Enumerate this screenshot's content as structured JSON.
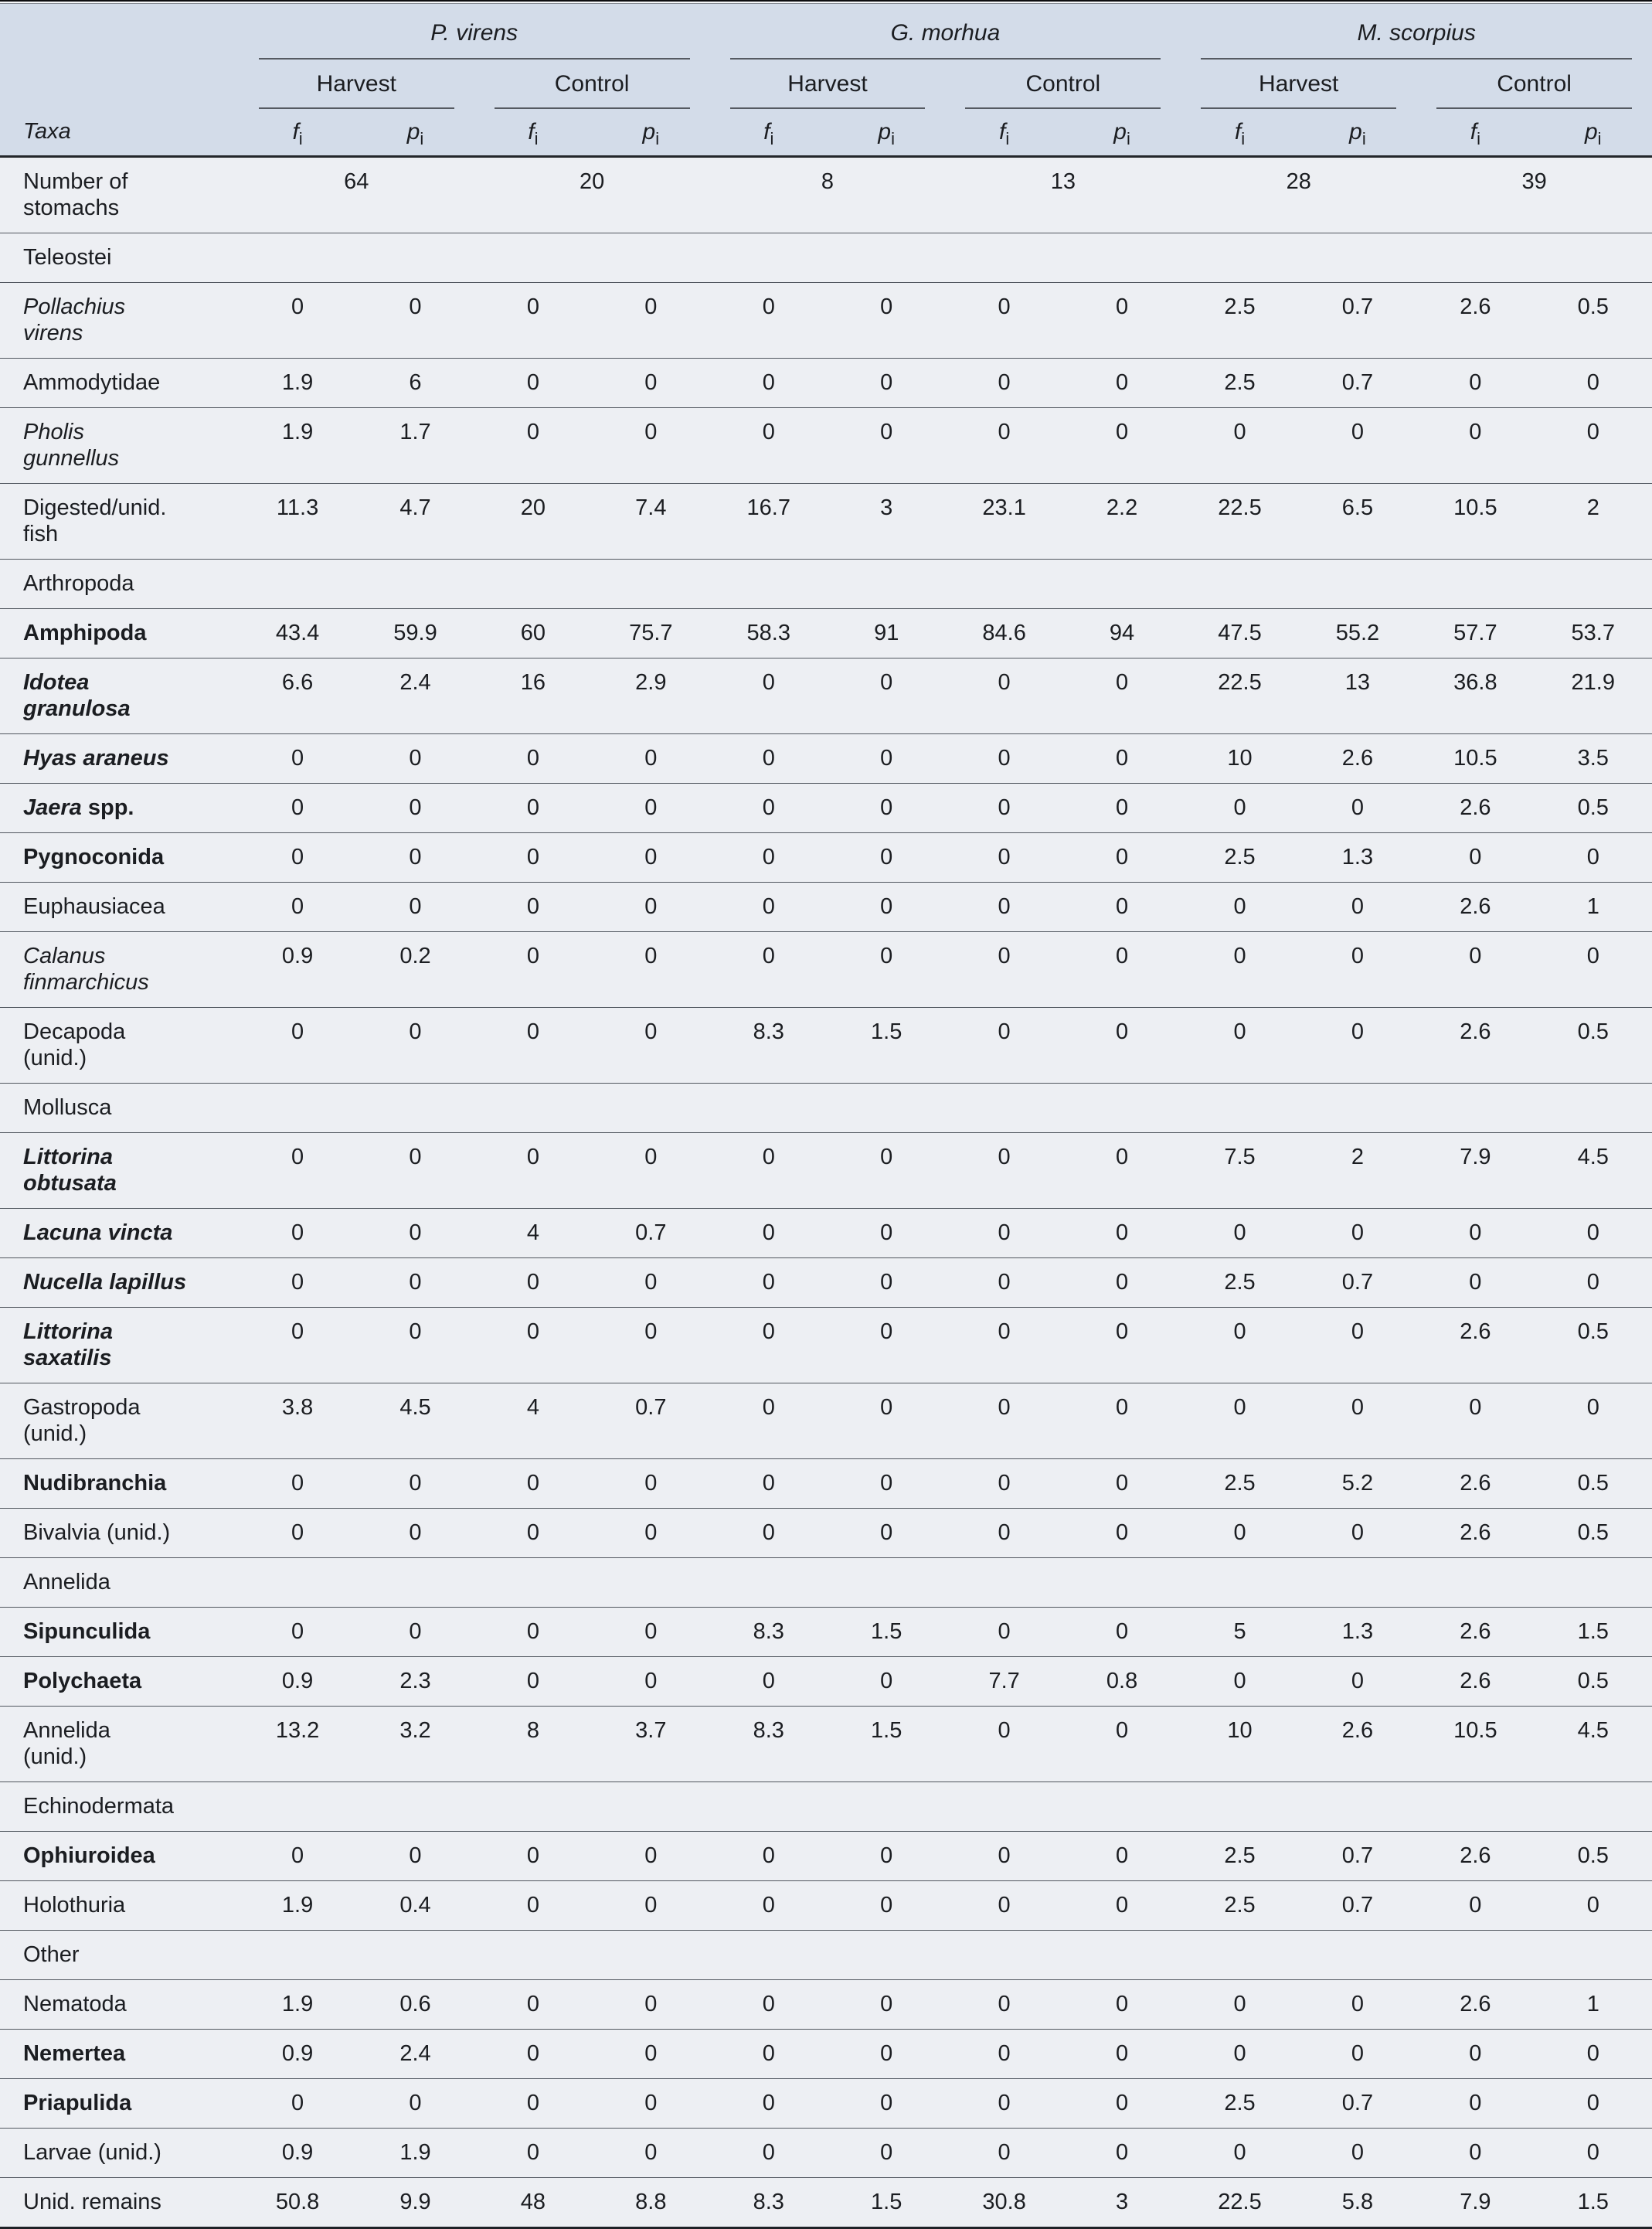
{
  "header": {
    "taxa_label": "Taxa",
    "metric_f": "f",
    "metric_p": "p",
    "metric_sub": "i",
    "species": [
      {
        "name": "P. virens"
      },
      {
        "name": "G. morhua"
      },
      {
        "name": "M. scorpius"
      }
    ],
    "treatments": [
      "Harvest",
      "Control",
      "Harvest",
      "Control",
      "Harvest",
      "Control"
    ]
  },
  "colors": {
    "header_bg": "#d3dce9",
    "body_bg": "#edeff3",
    "rule_dark": "#23262b",
    "rule_light": "#50565e"
  },
  "rows": [
    {
      "type": "stomachs",
      "label": "Number of\nstomachs",
      "counts": [
        "64",
        "20",
        "8",
        "13",
        "28",
        "39"
      ]
    },
    {
      "type": "section",
      "label": "Teleostei"
    },
    {
      "type": "taxa",
      "parts": [
        {
          "text": "Pollachius\nvirens",
          "style": "italic"
        }
      ],
      "values": [
        "0",
        "0",
        "0",
        "0",
        "0",
        "0",
        "0",
        "0",
        "2.5",
        "0.7",
        "2.6",
        "0.5"
      ]
    },
    {
      "type": "taxa",
      "parts": [
        {
          "text": "Ammodytidae",
          "style": "plain"
        }
      ],
      "values": [
        "1.9",
        "6",
        "0",
        "0",
        "0",
        "0",
        "0",
        "0",
        "2.5",
        "0.7",
        "0",
        "0"
      ]
    },
    {
      "type": "taxa",
      "parts": [
        {
          "text": "Pholis\ngunnellus",
          "style": "italic"
        }
      ],
      "values": [
        "1.9",
        "1.7",
        "0",
        "0",
        "0",
        "0",
        "0",
        "0",
        "0",
        "0",
        "0",
        "0"
      ]
    },
    {
      "type": "taxa",
      "parts": [
        {
          "text": "Digested/unid.\nfish",
          "style": "plain"
        }
      ],
      "values": [
        "11.3",
        "4.7",
        "20",
        "7.4",
        "16.7",
        "3",
        "23.1",
        "2.2",
        "22.5",
        "6.5",
        "10.5",
        "2"
      ]
    },
    {
      "type": "section",
      "label": "Arthropoda"
    },
    {
      "type": "taxa",
      "parts": [
        {
          "text": "Amphipoda",
          "style": "bold"
        }
      ],
      "values": [
        "43.4",
        "59.9",
        "60",
        "75.7",
        "58.3",
        "91",
        "84.6",
        "94",
        "47.5",
        "55.2",
        "57.7",
        "53.7"
      ]
    },
    {
      "type": "taxa",
      "parts": [
        {
          "text": "Idotea\ngranulosa",
          "style": "bolditalic"
        }
      ],
      "values": [
        "6.6",
        "2.4",
        "16",
        "2.9",
        "0",
        "0",
        "0",
        "0",
        "22.5",
        "13",
        "36.8",
        "21.9"
      ]
    },
    {
      "type": "taxa",
      "parts": [
        {
          "text": "Hyas araneus",
          "style": "bolditalic"
        }
      ],
      "values": [
        "0",
        "0",
        "0",
        "0",
        "0",
        "0",
        "0",
        "0",
        "10",
        "2.6",
        "10.5",
        "3.5"
      ]
    },
    {
      "type": "taxa",
      "parts": [
        {
          "text": "Jaera",
          "style": "bolditalic"
        },
        {
          "text": " spp.",
          "style": "bold"
        }
      ],
      "values": [
        "0",
        "0",
        "0",
        "0",
        "0",
        "0",
        "0",
        "0",
        "0",
        "0",
        "2.6",
        "0.5"
      ]
    },
    {
      "type": "taxa",
      "parts": [
        {
          "text": "Pygnoconida",
          "style": "bold"
        }
      ],
      "values": [
        "0",
        "0",
        "0",
        "0",
        "0",
        "0",
        "0",
        "0",
        "2.5",
        "1.3",
        "0",
        "0"
      ]
    },
    {
      "type": "taxa",
      "parts": [
        {
          "text": "Euphausiacea",
          "style": "plain"
        }
      ],
      "values": [
        "0",
        "0",
        "0",
        "0",
        "0",
        "0",
        "0",
        "0",
        "0",
        "0",
        "2.6",
        "1"
      ]
    },
    {
      "type": "taxa",
      "parts": [
        {
          "text": "Calanus\nfinmarchicus",
          "style": "italic"
        }
      ],
      "values": [
        "0.9",
        "0.2",
        "0",
        "0",
        "0",
        "0",
        "0",
        "0",
        "0",
        "0",
        "0",
        "0"
      ]
    },
    {
      "type": "taxa",
      "parts": [
        {
          "text": "Decapoda\n(unid.)",
          "style": "plain"
        }
      ],
      "values": [
        "0",
        "0",
        "0",
        "0",
        "8.3",
        "1.5",
        "0",
        "0",
        "0",
        "0",
        "2.6",
        "0.5"
      ]
    },
    {
      "type": "section",
      "label": "Mollusca"
    },
    {
      "type": "taxa",
      "parts": [
        {
          "text": "Littorina\nobtusata",
          "style": "bolditalic"
        }
      ],
      "values": [
        "0",
        "0",
        "0",
        "0",
        "0",
        "0",
        "0",
        "0",
        "7.5",
        "2",
        "7.9",
        "4.5"
      ]
    },
    {
      "type": "taxa",
      "parts": [
        {
          "text": "Lacuna vincta",
          "style": "bolditalic"
        }
      ],
      "values": [
        "0",
        "0",
        "4",
        "0.7",
        "0",
        "0",
        "0",
        "0",
        "0",
        "0",
        "0",
        "0"
      ]
    },
    {
      "type": "taxa",
      "parts": [
        {
          "text": "Nucella lapillus",
          "style": "bolditalic"
        }
      ],
      "values": [
        "0",
        "0",
        "0",
        "0",
        "0",
        "0",
        "0",
        "0",
        "2.5",
        "0.7",
        "0",
        "0"
      ]
    },
    {
      "type": "taxa",
      "parts": [
        {
          "text": "Littorina\nsaxatilis",
          "style": "bolditalic"
        }
      ],
      "values": [
        "0",
        "0",
        "0",
        "0",
        "0",
        "0",
        "0",
        "0",
        "0",
        "0",
        "2.6",
        "0.5"
      ]
    },
    {
      "type": "taxa",
      "parts": [
        {
          "text": "Gastropoda\n(unid.)",
          "style": "plain"
        }
      ],
      "values": [
        "3.8",
        "4.5",
        "4",
        "0.7",
        "0",
        "0",
        "0",
        "0",
        "0",
        "0",
        "0",
        "0"
      ]
    },
    {
      "type": "taxa",
      "parts": [
        {
          "text": "Nudibranchia",
          "style": "bold"
        }
      ],
      "values": [
        "0",
        "0",
        "0",
        "0",
        "0",
        "0",
        "0",
        "0",
        "2.5",
        "5.2",
        "2.6",
        "0.5"
      ]
    },
    {
      "type": "taxa",
      "parts": [
        {
          "text": "Bivalvia (unid.)",
          "style": "plain"
        }
      ],
      "values": [
        "0",
        "0",
        "0",
        "0",
        "0",
        "0",
        "0",
        "0",
        "0",
        "0",
        "2.6",
        "0.5"
      ]
    },
    {
      "type": "section",
      "label": "Annelida"
    },
    {
      "type": "taxa",
      "parts": [
        {
          "text": "Sipunculida",
          "style": "bold"
        }
      ],
      "values": [
        "0",
        "0",
        "0",
        "0",
        "8.3",
        "1.5",
        "0",
        "0",
        "5",
        "1.3",
        "2.6",
        "1.5"
      ]
    },
    {
      "type": "taxa",
      "parts": [
        {
          "text": "Polychaeta",
          "style": "bold"
        }
      ],
      "values": [
        "0.9",
        "2.3",
        "0",
        "0",
        "0",
        "0",
        "7.7",
        "0.8",
        "0",
        "0",
        "2.6",
        "0.5"
      ]
    },
    {
      "type": "taxa",
      "parts": [
        {
          "text": "Annelida\n(unid.)",
          "style": "plain"
        }
      ],
      "values": [
        "13.2",
        "3.2",
        "8",
        "3.7",
        "8.3",
        "1.5",
        "0",
        "0",
        "10",
        "2.6",
        "10.5",
        "4.5"
      ]
    },
    {
      "type": "section",
      "label": "Echinodermata"
    },
    {
      "type": "taxa",
      "parts": [
        {
          "text": "Ophiuroidea",
          "style": "bold"
        }
      ],
      "values": [
        "0",
        "0",
        "0",
        "0",
        "0",
        "0",
        "0",
        "0",
        "2.5",
        "0.7",
        "2.6",
        "0.5"
      ]
    },
    {
      "type": "taxa",
      "parts": [
        {
          "text": "Holothuria",
          "style": "plain"
        }
      ],
      "values": [
        "1.9",
        "0.4",
        "0",
        "0",
        "0",
        "0",
        "0",
        "0",
        "2.5",
        "0.7",
        "0",
        "0"
      ]
    },
    {
      "type": "section",
      "label": "Other"
    },
    {
      "type": "taxa",
      "parts": [
        {
          "text": "Nematoda",
          "style": "plain"
        }
      ],
      "values": [
        "1.9",
        "0.6",
        "0",
        "0",
        "0",
        "0",
        "0",
        "0",
        "0",
        "0",
        "2.6",
        "1"
      ]
    },
    {
      "type": "taxa",
      "parts": [
        {
          "text": "Nemertea",
          "style": "bold"
        }
      ],
      "values": [
        "0.9",
        "2.4",
        "0",
        "0",
        "0",
        "0",
        "0",
        "0",
        "0",
        "0",
        "0",
        "0"
      ]
    },
    {
      "type": "taxa",
      "parts": [
        {
          "text": "Priapulida",
          "style": "bold"
        }
      ],
      "values": [
        "0",
        "0",
        "0",
        "0",
        "0",
        "0",
        "0",
        "0",
        "2.5",
        "0.7",
        "0",
        "0"
      ]
    },
    {
      "type": "taxa",
      "parts": [
        {
          "text": "Larvae (unid.)",
          "style": "plain"
        }
      ],
      "values": [
        "0.9",
        "1.9",
        "0",
        "0",
        "0",
        "0",
        "0",
        "0",
        "0",
        "0",
        "0",
        "0"
      ]
    },
    {
      "type": "taxa",
      "parts": [
        {
          "text": "Unid. remains",
          "style": "plain"
        }
      ],
      "values": [
        "50.8",
        "9.9",
        "48",
        "8.8",
        "8.3",
        "1.5",
        "30.8",
        "3",
        "22.5",
        "5.8",
        "7.9",
        "1.5"
      ]
    }
  ]
}
